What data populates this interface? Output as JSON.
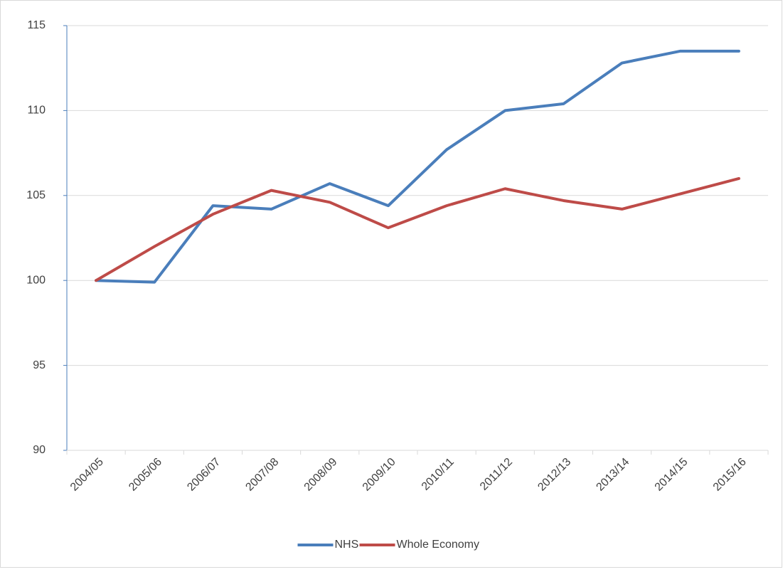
{
  "chart_data": {
    "type": "line",
    "categories": [
      "2004/05",
      "2005/06",
      "2006/07",
      "2007/08",
      "2008/09",
      "2009/10",
      "2010/11",
      "2011/12",
      "2012/13",
      "2013/14",
      "2014/15",
      "2015/16"
    ],
    "series": [
      {
        "name": "NHS",
        "color": "#4a7ebb",
        "values": [
          100,
          99.9,
          104.4,
          104.2,
          105.7,
          104.4,
          107.7,
          110.0,
          110.4,
          112.8,
          113.5,
          113.5
        ]
      },
      {
        "name": "Whole Economy",
        "color": "#be4b48",
        "values": [
          100,
          102.0,
          103.9,
          105.3,
          104.6,
          103.1,
          104.4,
          105.4,
          104.7,
          104.2,
          105.1,
          106.0
        ]
      }
    ],
    "ylim": [
      90,
      115
    ],
    "yticks": [
      90,
      95,
      100,
      105,
      110,
      115
    ],
    "grid": true,
    "legend": "bottom"
  }
}
